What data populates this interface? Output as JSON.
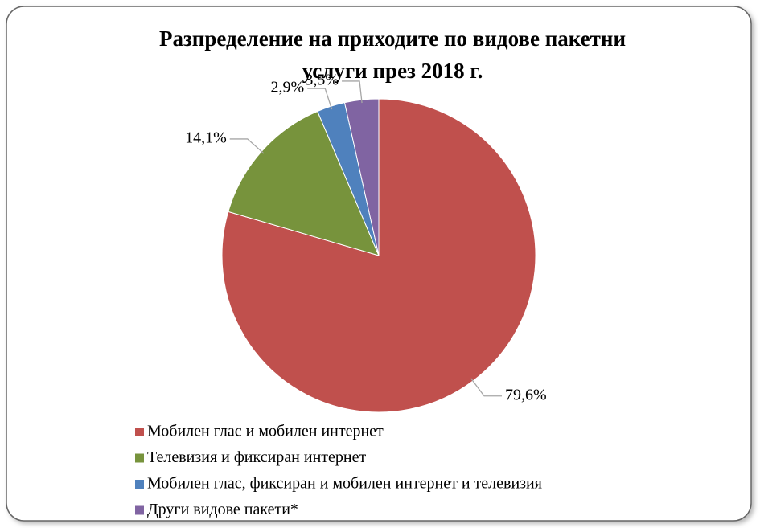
{
  "chart_data": {
    "type": "pie",
    "title": [
      "Разпределение на приходите по видове пакетни",
      "услуги през 2018 г."
    ],
    "categories": [
      "Мобилен глас и мобилен интернет",
      "Телевизия и фиксиран интернет",
      "Мобилен глас, фиксиран и мобилен интернет и телевизия",
      "Други видове пакети*"
    ],
    "values": [
      79.6,
      14.1,
      2.9,
      3.5
    ],
    "value_labels": [
      "79,6%",
      "14,1%",
      "2,9%",
      "3,5%"
    ],
    "colors": [
      "#c0504d",
      "#77933c",
      "#4f81bd",
      "#8064a2"
    ],
    "legend": "bottom"
  }
}
